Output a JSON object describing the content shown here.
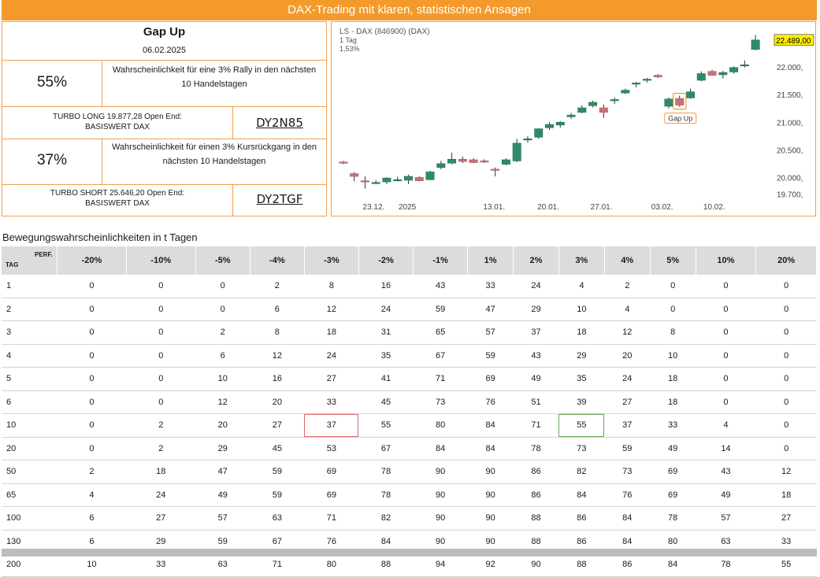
{
  "banner": "DAX-Trading mit klaren, statistischen Ansagen",
  "info": {
    "title": "Gap Up",
    "date": "06.02.2025",
    "rally_pct": "55%",
    "rally_text_1": "Wahrscheinlichkeit für eine 3% Rally in den nächsten",
    "rally_text_2": "10 Handelstagen",
    "long_line1": "TURBO LONG 19.877,28 Open End:",
    "long_line2": "BASISWERT DAX",
    "long_wkn": "DY2N85",
    "drop_pct": "37%",
    "drop_text_1": "Wahrscheinlichkeit für einen 3% Kursrückgang in den",
    "drop_text_2": "nächsten 10 Handelstagen",
    "short_line1": "TURBO SHORT 25.646,20 Open End:",
    "short_line2": "BASISWERT DAX",
    "short_wkn": "DY2TGF"
  },
  "colors": {
    "up": "#2e8b6a",
    "down": "#c9727c",
    "accent": "#f39a2b",
    "price_tag": "#ffee00"
  },
  "chart_data": {
    "type": "candlestick",
    "header": [
      "LS - DAX (846900) (DAX)",
      "1 Tag",
      "1,53%"
    ],
    "y_ticks": [
      "22.000,",
      "21.500,",
      "21.000,",
      "20.500,",
      "20.000,",
      "19.700,"
    ],
    "y_tick_values": [
      22000,
      21500,
      21000,
      20500,
      20000,
      19700
    ],
    "x_ticks": [
      "23.12.",
      "2025",
      "13.01.",
      "20.01.",
      "27.01.",
      "03.02.",
      "10.02."
    ],
    "x_tick_index": [
      2.8,
      5.9,
      13.9,
      18.9,
      23.8,
      29.4,
      34.2
    ],
    "ylim": [
      19650,
      22700
    ],
    "last_price": "22.489,00",
    "annotation": "Gap Up",
    "annotation_index": 31,
    "candles": [
      {
        "o": 20280,
        "h": 20300,
        "l": 20240,
        "c": 20270
      },
      {
        "o": 20070,
        "h": 20100,
        "l": 19930,
        "c": 20020
      },
      {
        "o": 19940,
        "h": 20020,
        "l": 19800,
        "c": 19920
      },
      {
        "o": 19900,
        "h": 19950,
        "l": 19880,
        "c": 19910
      },
      {
        "o": 19920,
        "h": 20000,
        "l": 19880,
        "c": 19990
      },
      {
        "o": 19950,
        "h": 20010,
        "l": 19930,
        "c": 19960
      },
      {
        "o": 19950,
        "h": 20050,
        "l": 19880,
        "c": 20020
      },
      {
        "o": 20000,
        "h": 20020,
        "l": 19930,
        "c": 19940
      },
      {
        "o": 19960,
        "h": 20120,
        "l": 19950,
        "c": 20100
      },
      {
        "o": 20180,
        "h": 20300,
        "l": 20150,
        "c": 20250
      },
      {
        "o": 20260,
        "h": 20450,
        "l": 20240,
        "c": 20330
      },
      {
        "o": 20330,
        "h": 20380,
        "l": 20260,
        "c": 20290
      },
      {
        "o": 20320,
        "h": 20350,
        "l": 20260,
        "c": 20270
      },
      {
        "o": 20300,
        "h": 20330,
        "l": 20260,
        "c": 20290
      },
      {
        "o": 20150,
        "h": 20180,
        "l": 20020,
        "c": 20130
      },
      {
        "o": 20240,
        "h": 20350,
        "l": 20220,
        "c": 20320
      },
      {
        "o": 20300,
        "h": 20700,
        "l": 20280,
        "c": 20620
      },
      {
        "o": 20690,
        "h": 20750,
        "l": 20630,
        "c": 20700
      },
      {
        "o": 20730,
        "h": 20890,
        "l": 20700,
        "c": 20880
      },
      {
        "o": 20900,
        "h": 21000,
        "l": 20860,
        "c": 20960
      },
      {
        "o": 20950,
        "h": 21020,
        "l": 20900,
        "c": 21000
      },
      {
        "o": 21100,
        "h": 21170,
        "l": 21060,
        "c": 21130
      },
      {
        "o": 21180,
        "h": 21310,
        "l": 21160,
        "c": 21260
      },
      {
        "o": 21300,
        "h": 21390,
        "l": 21270,
        "c": 21360
      },
      {
        "o": 21260,
        "h": 21320,
        "l": 21080,
        "c": 21180
      },
      {
        "o": 21400,
        "h": 21450,
        "l": 21330,
        "c": 21410
      },
      {
        "o": 21530,
        "h": 21610,
        "l": 21510,
        "c": 21580
      },
      {
        "o": 21700,
        "h": 21730,
        "l": 21630,
        "c": 21710
      },
      {
        "o": 21760,
        "h": 21800,
        "l": 21720,
        "c": 21780
      },
      {
        "o": 21850,
        "h": 21870,
        "l": 21800,
        "c": 21820
      },
      {
        "o": 21290,
        "h": 21450,
        "l": 21250,
        "c": 21420
      },
      {
        "o": 21430,
        "h": 21480,
        "l": 21280,
        "c": 21310
      },
      {
        "o": 21440,
        "h": 21610,
        "l": 21430,
        "c": 21550
      },
      {
        "o": 21760,
        "h": 21920,
        "l": 21740,
        "c": 21880
      },
      {
        "o": 21920,
        "h": 21950,
        "l": 21840,
        "c": 21850
      },
      {
        "o": 21860,
        "h": 21930,
        "l": 21790,
        "c": 21900
      },
      {
        "o": 21910,
        "h": 22010,
        "l": 21880,
        "c": 21990
      },
      {
        "o": 22020,
        "h": 22120,
        "l": 21990,
        "c": 22040
      },
      {
        "o": 22320,
        "h": 22580,
        "l": 22300,
        "c": 22489
      }
    ]
  },
  "table": {
    "title": "Bewegungswahrscheinlichkeiten in t Tagen",
    "corner_perf": "PERF.",
    "corner_tag": "TAG",
    "columns": [
      "-20%",
      "-10%",
      "-5%",
      "-4%",
      "-3%",
      "-2%",
      "-1%",
      "1%",
      "2%",
      "3%",
      "4%",
      "5%",
      "10%",
      "20%"
    ],
    "rows": [
      {
        "tag": "1",
        "values": [
          "0",
          "0",
          "0",
          "2",
          "8",
          "16",
          "43",
          "33",
          "24",
          "4",
          "2",
          "0",
          "0",
          "0"
        ]
      },
      {
        "tag": "2",
        "values": [
          "0",
          "0",
          "0",
          "6",
          "12",
          "24",
          "59",
          "47",
          "29",
          "10",
          "4",
          "0",
          "0",
          "0"
        ]
      },
      {
        "tag": "3",
        "values": [
          "0",
          "0",
          "2",
          "8",
          "18",
          "31",
          "65",
          "57",
          "37",
          "18",
          "12",
          "8",
          "0",
          "0"
        ]
      },
      {
        "tag": "4",
        "values": [
          "0",
          "0",
          "6",
          "12",
          "24",
          "35",
          "67",
          "59",
          "43",
          "29",
          "20",
          "10",
          "0",
          "0"
        ]
      },
      {
        "tag": "5",
        "values": [
          "0",
          "0",
          "10",
          "16",
          "27",
          "41",
          "71",
          "69",
          "49",
          "35",
          "24",
          "18",
          "0",
          "0"
        ]
      },
      {
        "tag": "6",
        "values": [
          "0",
          "0",
          "12",
          "20",
          "33",
          "45",
          "73",
          "76",
          "51",
          "39",
          "27",
          "18",
          "0",
          "0"
        ]
      },
      {
        "tag": "10",
        "values": [
          "0",
          "2",
          "20",
          "27",
          "37",
          "55",
          "80",
          "84",
          "71",
          "55",
          "37",
          "33",
          "4",
          "0"
        ]
      },
      {
        "tag": "20",
        "values": [
          "0",
          "2",
          "29",
          "45",
          "53",
          "67",
          "84",
          "84",
          "78",
          "73",
          "59",
          "49",
          "14",
          "0"
        ]
      },
      {
        "tag": "50",
        "values": [
          "2",
          "18",
          "47",
          "59",
          "69",
          "78",
          "90",
          "90",
          "86",
          "82",
          "73",
          "69",
          "43",
          "12"
        ]
      },
      {
        "tag": "65",
        "values": [
          "4",
          "24",
          "49",
          "59",
          "69",
          "78",
          "90",
          "90",
          "86",
          "84",
          "76",
          "69",
          "49",
          "18"
        ]
      },
      {
        "tag": "100",
        "values": [
          "6",
          "27",
          "57",
          "63",
          "71",
          "82",
          "90",
          "90",
          "88",
          "86",
          "84",
          "78",
          "57",
          "27"
        ]
      },
      {
        "tag": "130",
        "values": [
          "6",
          "29",
          "59",
          "67",
          "76",
          "84",
          "90",
          "90",
          "88",
          "86",
          "84",
          "80",
          "63",
          "33"
        ]
      },
      {
        "tag": "200",
        "values": [
          "10",
          "33",
          "63",
          "71",
          "80",
          "88",
          "94",
          "92",
          "90",
          "88",
          "86",
          "84",
          "78",
          "55"
        ]
      }
    ]
  }
}
